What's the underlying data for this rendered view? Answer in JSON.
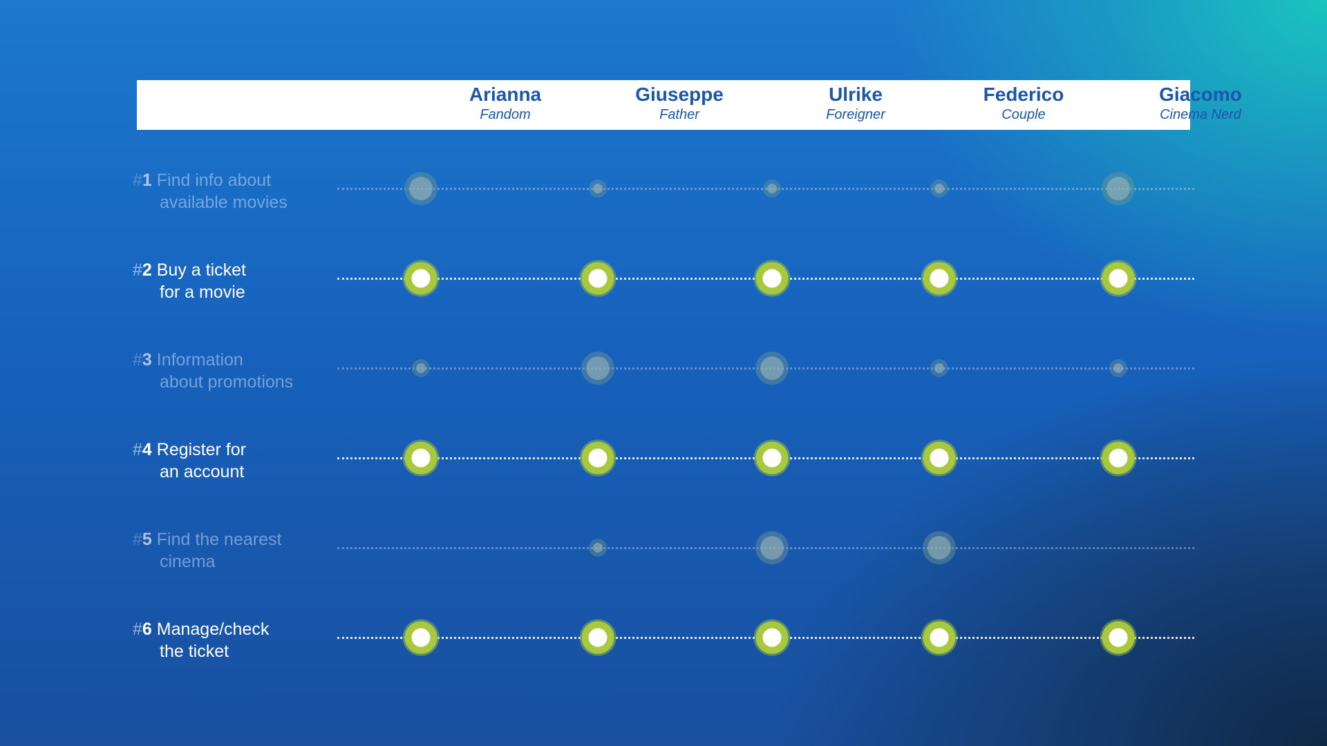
{
  "personas": [
    {
      "name": "Arianna",
      "role": "Fandom"
    },
    {
      "name": "Giuseppe",
      "role": "Father"
    },
    {
      "name": "Ulrike",
      "role": "Foreigner"
    },
    {
      "name": "Federico",
      "role": "Couple"
    },
    {
      "name": "Giacomo",
      "role": "Cinema Nerd"
    }
  ],
  "tasks": [
    {
      "hash": "#",
      "num": "1",
      "line1": " Find info about",
      "line2": "available movies",
      "emphasis": "dim",
      "relevance": [
        "large",
        "small",
        "small",
        "small",
        "large"
      ]
    },
    {
      "hash": "#",
      "num": "2",
      "line1": " Buy a ticket",
      "line2": "for a movie",
      "emphasis": "active",
      "relevance": [
        "high",
        "high",
        "high",
        "high",
        "high"
      ]
    },
    {
      "hash": "#",
      "num": "3",
      "line1": " Information",
      "line2": "about promotions",
      "emphasis": "dim",
      "relevance": [
        "small",
        "large",
        "large",
        "small",
        "small"
      ]
    },
    {
      "hash": "#",
      "num": "4",
      "line1": " Register for",
      "line2": "an account",
      "emphasis": "active",
      "relevance": [
        "high",
        "high",
        "high",
        "high",
        "high"
      ]
    },
    {
      "hash": "#",
      "num": "5",
      "line1": " Find the nearest",
      "line2": "cinema",
      "emphasis": "dim",
      "relevance": [
        "none",
        "small",
        "large",
        "large",
        "none"
      ]
    },
    {
      "hash": "#",
      "num": "6",
      "line1": " Manage/check",
      "line2": "the ticket",
      "emphasis": "active",
      "relevance": [
        "high",
        "high",
        "high",
        "high",
        "high"
      ]
    }
  ],
  "colors": {
    "header_text": "#1b57a8",
    "marker_ring": "#a8c93e",
    "marker_core": "#ffffff"
  }
}
